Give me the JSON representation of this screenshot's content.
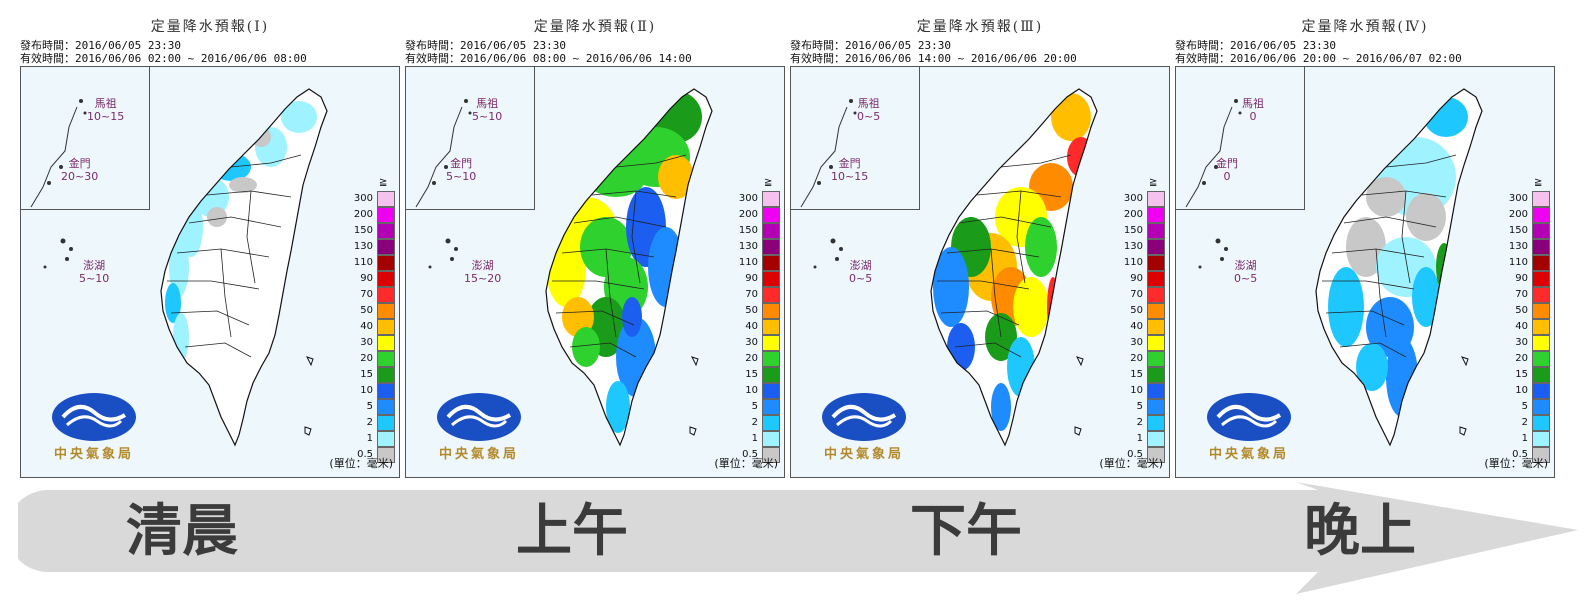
{
  "panels": [
    {
      "title": "定量降水預報(Ⅰ)",
      "issue": "發布時間：2016/06/05 23:30",
      "valid": "有效時間：2016/06/06 02:00 ~ 2016/06/06 08:00",
      "matsu": "馬祖",
      "matsu_val": "10~15",
      "kinmen": "金門",
      "kinmen_val": "20~30",
      "penghu": "澎湖",
      "penghu_val": "5~10"
    },
    {
      "title": "定量降水預報(Ⅱ)",
      "issue": "發布時間：2016/06/05 23:30",
      "valid": "有效時間：2016/06/06 08:00 ~ 2016/06/06 14:00",
      "matsu": "馬祖",
      "matsu_val": "5~10",
      "kinmen": "金門",
      "kinmen_val": "5~10",
      "penghu": "澎湖",
      "penghu_val": "15~20"
    },
    {
      "title": "定量降水預報(Ⅲ)",
      "issue": "發布時間：2016/06/05 23:30",
      "valid": "有效時間：2016/06/06 14:00 ~ 2016/06/06 20:00",
      "matsu": "馬祖",
      "matsu_val": "0~5",
      "kinmen": "金門",
      "kinmen_val": "10~15",
      "penghu": "澎湖",
      "penghu_val": "0~5"
    },
    {
      "title": "定量降水預報(Ⅳ)",
      "issue": "發布時間：2016/06/05 23:30",
      "valid": "有效時間：2016/06/06 20:00 ~ 2016/06/07 02:00",
      "matsu": "馬祖",
      "matsu_val": "0",
      "kinmen": "金門",
      "kinmen_val": "0",
      "penghu": "澎湖",
      "penghu_val": "0~5"
    }
  ],
  "legend": {
    "title": "≧",
    "levels": [
      "300",
      "200",
      "150",
      "130",
      "110",
      "90",
      "70",
      "50",
      "40",
      "30",
      "20",
      "15",
      "10",
      "5",
      "2",
      "1",
      "0.5"
    ],
    "colors": [
      "#f5c2ee",
      "#f000f0",
      "#b400b4",
      "#8a007a",
      "#a30000",
      "#dd0000",
      "#ff2a2a",
      "#ff8c00",
      "#ffbe00",
      "#ffff00",
      "#2ed12e",
      "#1a9c1a",
      "#1c5ef0",
      "#1e8cff",
      "#1ec8ff",
      "#9ff2ff",
      "#c8c8c8"
    ],
    "unit": "(單位：毫米)"
  },
  "logo_text": "中央氣象局",
  "timeline": [
    "清晨",
    "上午",
    "下午",
    "晚上"
  ],
  "colors": {
    "arrow": "#d9d9d9",
    "map_bg": "#eef7fc"
  }
}
